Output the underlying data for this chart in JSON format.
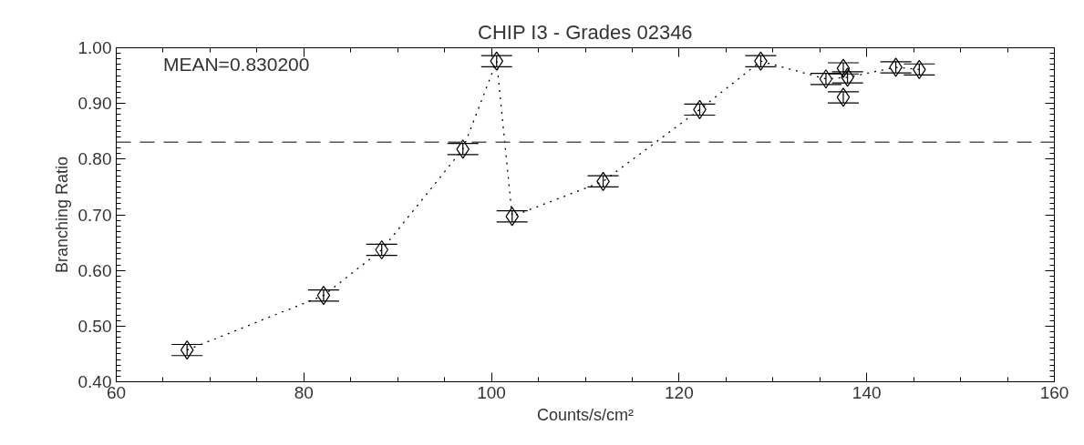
{
  "chart_data": {
    "type": "scatter",
    "title": "CHIP I3 - Grades 02346",
    "xlabel": "Counts/s/cm²",
    "ylabel": "Branching Ratio",
    "xlim": [
      60,
      160
    ],
    "xticks": [
      60,
      80,
      100,
      120,
      140,
      160
    ],
    "ylim": [
      0.4,
      1.0
    ],
    "yticks": [
      {
        "value": 0.4,
        "label": "0.40"
      },
      {
        "value": 0.5,
        "label": "0.50"
      },
      {
        "value": 0.6,
        "label": "0.60"
      },
      {
        "value": 0.7,
        "label": "0.70"
      },
      {
        "value": 0.8,
        "label": "0.80"
      },
      {
        "value": 0.9,
        "label": "0.90"
      },
      {
        "value": 1.0,
        "label": "1.00"
      }
    ],
    "grid": false,
    "series": [
      {
        "color": "#000000",
        "marker": "diamond",
        "x": [
          67.55,
          82.1,
          88.3,
          96.95,
          100.55,
          102.2,
          111.9,
          122.2,
          128.7,
          135.65,
          137.5,
          137.95,
          137.5,
          143.1,
          145.6
        ],
        "values": [
          0.457,
          0.555,
          0.637,
          0.818,
          0.976,
          0.697,
          0.76,
          0.889,
          0.976,
          0.944,
          0.963,
          0.947,
          0.911,
          0.965,
          0.961
        ],
        "errors": [
          0.01,
          0.01,
          0.01,
          0.01,
          0.01,
          0.01,
          0.01,
          0.01,
          0.01,
          0.01,
          0.01,
          0.01,
          0.01,
          0.01,
          0.01
        ]
      },
      {
        "type": "line",
        "color": "#000000",
        "line_style": "dotted",
        "x": [
          67.55,
          82.1,
          88.3,
          96.95,
          100.55,
          102.2,
          111.9,
          122.2,
          128.7,
          135.65,
          137.95,
          143.1,
          145.6
        ],
        "values": [
          0.457,
          0.555,
          0.637,
          0.818,
          0.976,
          0.697,
          0.76,
          0.889,
          0.976,
          0.944,
          0.947,
          0.965,
          0.961
        ]
      }
    ],
    "ref_lines": [
      {
        "axis": "y",
        "value": 0.8302,
        "label": "MEAN=0.830200",
        "color": "#555555",
        "line_style": "dashed"
      }
    ]
  }
}
